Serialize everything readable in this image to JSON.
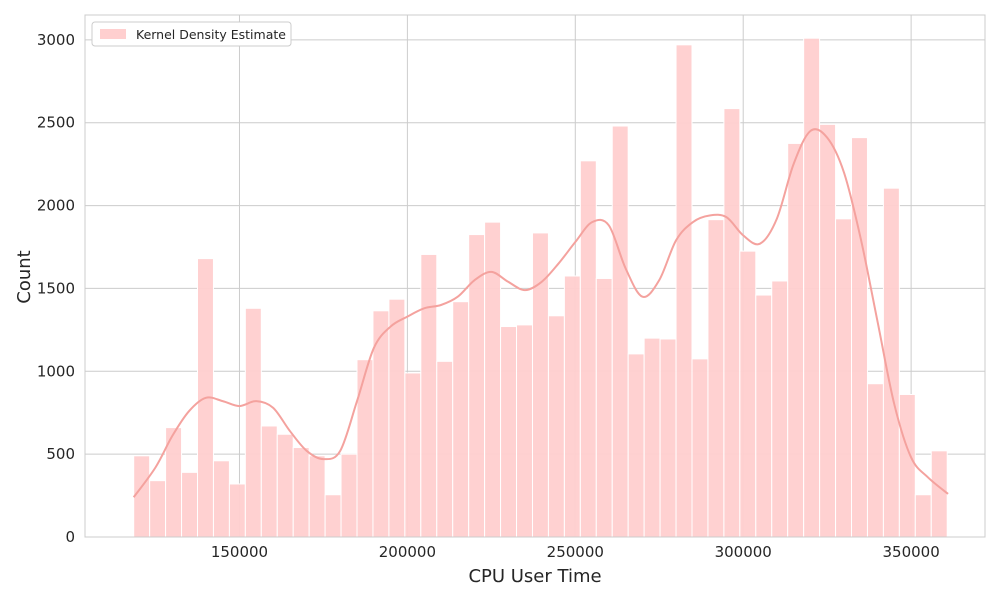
{
  "chart_data": {
    "type": "bar",
    "subtype": "histogram-with-kde",
    "xlabel": "CPU User Time",
    "ylabel": "Count",
    "xlim": [
      104000,
      372000
    ],
    "ylim": [
      0,
      3150
    ],
    "xticks": [
      150000,
      200000,
      250000,
      300000,
      350000
    ],
    "yticks": [
      0,
      500,
      1000,
      1500,
      2000,
      2500,
      3000
    ],
    "grid": true,
    "legend": {
      "position": "top-left",
      "entries": [
        "Kernel Density Estimate"
      ]
    },
    "bins": {
      "start": 118500,
      "width": 4750,
      "counts": [
        490,
        340,
        660,
        390,
        1680,
        460,
        320,
        1380,
        670,
        620,
        540,
        490,
        255,
        500,
        1070,
        1365,
        1435,
        990,
        1705,
        1060,
        1420,
        1825,
        1900,
        1270,
        1280,
        1835,
        1335,
        1575,
        2270,
        1560,
        2480,
        1105,
        1200,
        1195,
        2970,
        1075,
        1915,
        2585,
        1725,
        1460,
        1545,
        2375,
        3010,
        2490,
        1920,
        2410,
        925,
        2105,
        860,
        255,
        520
      ]
    },
    "kde": {
      "x": [
        118500,
        125000,
        130000,
        135000,
        140000,
        145000,
        150000,
        155000,
        160000,
        165000,
        170000,
        175000,
        180000,
        185000,
        190000,
        195000,
        200000,
        205000,
        210000,
        215000,
        220000,
        225000,
        230000,
        235000,
        240000,
        245000,
        250000,
        255000,
        260000,
        265000,
        270000,
        275000,
        280000,
        285000,
        290000,
        295000,
        300000,
        305000,
        310000,
        315000,
        320000,
        325000,
        330000,
        335000,
        340000,
        345000,
        350000,
        355000,
        361000
      ],
      "y": [
        240,
        420,
        610,
        760,
        840,
        820,
        790,
        820,
        780,
        640,
        520,
        470,
        520,
        820,
        1140,
        1270,
        1330,
        1380,
        1400,
        1450,
        1550,
        1600,
        1540,
        1490,
        1540,
        1650,
        1780,
        1900,
        1880,
        1620,
        1450,
        1550,
        1790,
        1900,
        1940,
        1930,
        1820,
        1770,
        1920,
        2250,
        2450,
        2410,
        2200,
        1800,
        1300,
        800,
        480,
        360,
        260
      ]
    },
    "colors": {
      "bar_fill": "#ffcfcf",
      "bar_stroke": "#ffffff",
      "kde_line": "#f4a29e",
      "grid": "#cccccc",
      "text": "#262626"
    }
  }
}
